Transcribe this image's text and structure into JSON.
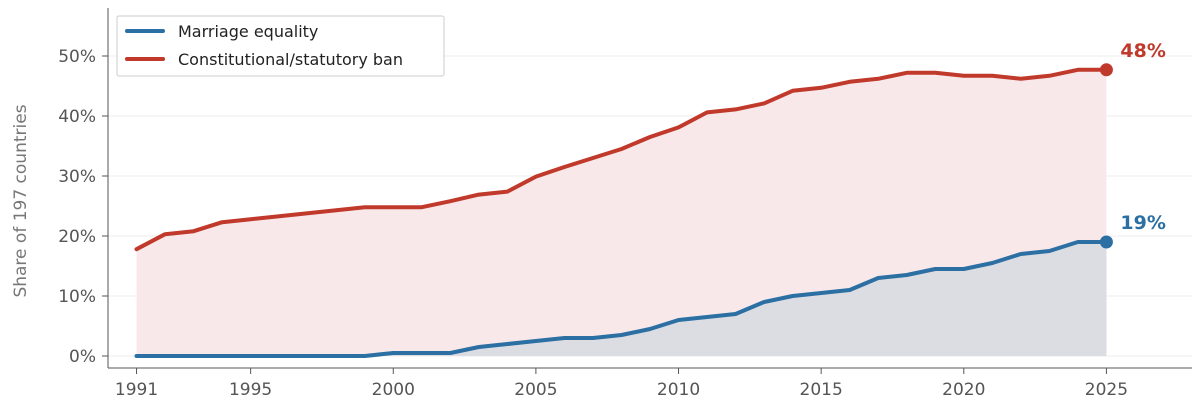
{
  "chart_data": {
    "type": "area",
    "xlabel": "",
    "ylabel": "Share of 197 countries",
    "xlim": [
      1990,
      2028
    ],
    "ylim": [
      -2,
      58
    ],
    "x_ticks": [
      1991,
      1995,
      2000,
      2005,
      2010,
      2015,
      2020,
      2025
    ],
    "x_tick_labels": [
      "1991",
      "1995",
      "2000",
      "2005",
      "2010",
      "2015",
      "2020",
      "2025"
    ],
    "y_ticks": [
      0,
      10,
      20,
      30,
      40,
      50
    ],
    "y_tick_labels": [
      "0%",
      "10%",
      "20%",
      "30%",
      "40%",
      "50%"
    ],
    "grid": "horizontal",
    "legend_position": "top-left",
    "x": [
      1991,
      1992,
      1993,
      1994,
      1995,
      1996,
      1997,
      1998,
      1999,
      2000,
      2001,
      2002,
      2003,
      2004,
      2005,
      2006,
      2007,
      2008,
      2009,
      2010,
      2011,
      2012,
      2013,
      2014,
      2015,
      2016,
      2017,
      2018,
      2019,
      2020,
      2021,
      2022,
      2023,
      2024,
      2025
    ],
    "series": [
      {
        "name": "Marriage equality",
        "color": "#2b6fa3",
        "fill": "#dcdce3",
        "end_label": "19%",
        "values": [
          0,
          0,
          0,
          0,
          0,
          0,
          0,
          0,
          0,
          0.5,
          0.5,
          0.5,
          1.5,
          2,
          2.5,
          3,
          3,
          3.5,
          4.5,
          6,
          6.5,
          7,
          9,
          10,
          10.5,
          11,
          13,
          13.5,
          14.5,
          14.5,
          15.5,
          17,
          17.5,
          19,
          19
        ]
      },
      {
        "name": "Constitutional/statutory ban",
        "color": "#c0392b",
        "fill": "#f8e8ea",
        "end_label": "48%",
        "values": [
          17.8,
          20.3,
          20.8,
          22.3,
          22.8,
          23.3,
          23.8,
          24.3,
          24.8,
          24.8,
          24.8,
          25.8,
          26.9,
          27.4,
          29.9,
          31.5,
          33.0,
          34.5,
          36.5,
          38.1,
          40.6,
          41.1,
          42.1,
          44.2,
          44.7,
          45.7,
          46.2,
          47.2,
          47.2,
          46.7,
          46.7,
          46.2,
          46.7,
          47.7,
          47.7
        ]
      }
    ]
  }
}
